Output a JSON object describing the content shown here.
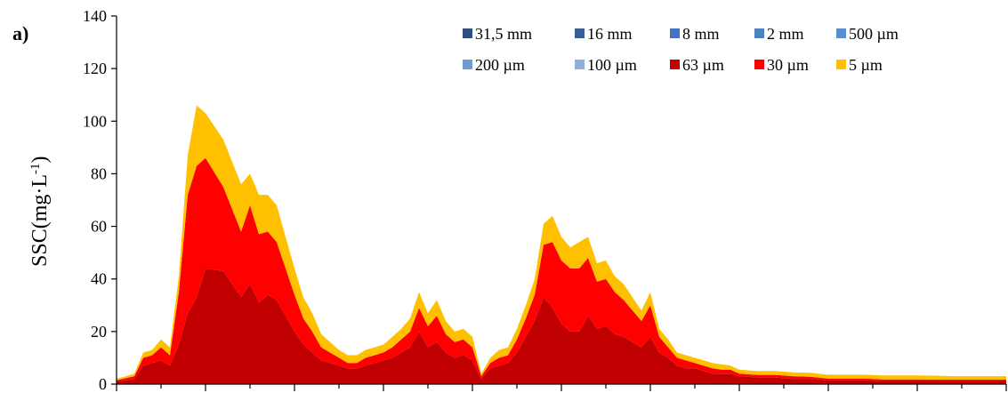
{
  "panel_label": "a)",
  "chart_data": {
    "type": "area",
    "stacked": true,
    "title": "",
    "xlabel": "",
    "ylabel": "SSC(mg·L",
    "ylabel_sup": "-1",
    "ylabel_close": ")",
    "ylim": [
      0,
      140
    ],
    "yticks": [
      0,
      20,
      40,
      60,
      80,
      100,
      120,
      140
    ],
    "xlim": [
      0,
      100
    ],
    "xticks_major": [
      0,
      10,
      20,
      30,
      40,
      50,
      60,
      70,
      80,
      90,
      100
    ],
    "xticks_minor": [
      5,
      15,
      25,
      35,
      45,
      55,
      65,
      75,
      85,
      95
    ],
    "legend_position": "top-right",
    "x": [
      0,
      2,
      3,
      4,
      5,
      6,
      7,
      8,
      9,
      10,
      12,
      14,
      15,
      16,
      17,
      18,
      19,
      20,
      21,
      22,
      23,
      24,
      25,
      26,
      27,
      28,
      29,
      30,
      31,
      32,
      33,
      34,
      35,
      36,
      37,
      38,
      39,
      40,
      41,
      42,
      43,
      44,
      45,
      46,
      47,
      48,
      49,
      50,
      51,
      52,
      53,
      54,
      55,
      56,
      57,
      58,
      59,
      60,
      61,
      62,
      63,
      64,
      65,
      66,
      67,
      68,
      69,
      70,
      72,
      74,
      76,
      78,
      80,
      82,
      84,
      86,
      88,
      90,
      92,
      94,
      96,
      98,
      100
    ],
    "series": [
      {
        "name": "31,5 mm",
        "color": "#2E4F7C",
        "values": [
          0,
          0,
          0,
          0,
          0,
          0,
          0,
          0,
          0,
          0,
          0,
          0,
          0,
          0,
          0,
          0,
          0,
          0,
          0,
          0,
          0,
          0,
          0,
          0,
          0,
          0,
          0,
          0,
          0,
          0,
          0,
          0,
          0,
          0,
          0,
          0,
          0,
          0,
          0,
          0,
          0,
          0,
          0,
          0,
          0,
          0,
          0,
          0,
          0,
          0,
          0,
          0,
          0,
          0,
          0,
          0,
          0,
          0,
          0,
          0,
          0,
          0,
          0,
          0,
          0,
          0,
          0,
          0,
          0,
          0,
          0,
          0,
          0,
          0,
          0,
          0,
          0,
          0,
          0,
          0,
          0,
          0,
          0
        ]
      },
      {
        "name": "16 mm",
        "color": "#375F94",
        "values": [
          0,
          0,
          0,
          0,
          0,
          0,
          0,
          0,
          0,
          0,
          0,
          0,
          0,
          0,
          0,
          0,
          0,
          0,
          0,
          0,
          0,
          0,
          0,
          0,
          0,
          0,
          0,
          0,
          0,
          0,
          0,
          0,
          0,
          0,
          0,
          0,
          0,
          0,
          0,
          0,
          0,
          0,
          0,
          0,
          0,
          0,
          0,
          0,
          0,
          0,
          0,
          0,
          0,
          0,
          0,
          0,
          0,
          0,
          0,
          0,
          0,
          0,
          0,
          0,
          0,
          0,
          0,
          0,
          0,
          0,
          0,
          0,
          0,
          0,
          0,
          0,
          0,
          0,
          0,
          0,
          0,
          0,
          0
        ]
      },
      {
        "name": "8 mm",
        "color": "#4472C4",
        "values": [
          0,
          0,
          0,
          0,
          0,
          0,
          0,
          0,
          0,
          0,
          0,
          0,
          0,
          0,
          0,
          0,
          0,
          0,
          0,
          0,
          0,
          0,
          0,
          0,
          0,
          0,
          0,
          0,
          0,
          0,
          0,
          0,
          0,
          0,
          0,
          0,
          0,
          0,
          0,
          0,
          0,
          0,
          0,
          0,
          0,
          0,
          0,
          0,
          0,
          0,
          0,
          0,
          0,
          0,
          0,
          0,
          0,
          0,
          0,
          0,
          0,
          0,
          0,
          0,
          0,
          0,
          0,
          0,
          0,
          0,
          0,
          0,
          0,
          0,
          0,
          0,
          0,
          0,
          0,
          0,
          0,
          0,
          0
        ]
      },
      {
        "name": "2 mm",
        "color": "#4F81BD",
        "values": [
          0,
          0,
          0,
          0,
          0,
          0,
          0,
          0,
          0,
          0,
          0,
          0,
          0,
          0,
          0,
          0,
          0,
          0,
          0,
          0,
          0,
          0,
          0,
          0,
          0,
          0,
          0,
          0,
          0,
          0,
          0,
          0,
          0,
          0,
          0,
          0,
          0,
          0,
          0,
          0,
          0,
          0,
          0,
          0,
          0,
          0,
          0,
          0,
          0,
          0,
          0,
          0,
          0,
          0,
          0,
          0,
          0,
          0,
          0,
          0,
          0,
          0,
          0,
          0,
          0,
          0,
          0,
          0,
          0,
          0,
          0,
          0,
          0,
          0,
          0,
          0,
          0,
          0,
          0,
          0,
          0,
          0,
          0
        ]
      },
      {
        "name": "500 µm",
        "color": "#5B8FCC",
        "values": [
          0,
          0,
          0,
          0,
          0,
          0,
          0,
          0,
          0,
          0,
          0,
          0,
          0,
          0,
          0,
          0,
          0,
          0,
          0,
          0,
          0,
          0,
          0,
          0,
          0,
          0,
          0,
          0,
          0,
          0,
          0,
          0,
          0,
          0,
          0,
          0,
          0,
          0,
          0,
          0,
          0,
          0,
          0,
          0,
          0,
          0,
          0,
          0,
          0,
          0,
          0,
          0,
          0,
          0,
          0,
          0,
          0,
          0,
          0,
          0,
          0,
          0,
          0,
          0,
          0,
          0,
          0,
          0,
          0,
          0,
          0,
          0,
          0,
          0,
          0,
          0,
          0,
          0,
          0,
          0,
          0,
          0,
          0
        ]
      },
      {
        "name": "200 µm",
        "color": "#6E9BD1",
        "values": [
          0,
          0,
          0,
          0,
          0,
          0,
          0,
          0,
          0,
          0,
          0,
          0,
          0,
          0,
          0,
          0,
          0,
          0,
          0,
          0,
          0,
          0,
          0,
          0,
          0,
          0,
          0,
          0,
          0,
          0,
          0,
          0,
          0,
          0,
          0,
          0,
          0,
          0,
          0,
          0,
          0,
          0,
          0,
          0,
          0,
          0,
          0,
          0,
          0,
          0,
          0,
          0,
          0,
          0,
          0,
          0,
          0,
          0,
          0,
          0,
          0,
          0,
          0,
          0,
          0,
          0,
          0,
          0,
          0,
          0,
          0,
          0,
          0,
          0,
          0,
          0,
          0,
          0,
          0,
          0,
          0,
          0,
          0
        ]
      },
      {
        "name": "100 µm",
        "color": "#8EAFD8",
        "values": [
          0,
          0,
          0,
          0,
          0,
          0,
          0,
          0,
          0,
          0,
          0,
          0,
          0,
          0,
          0,
          0,
          0,
          0,
          0,
          0,
          0,
          0,
          0,
          0,
          0,
          0,
          0,
          0,
          0,
          0,
          0,
          0,
          0,
          0,
          0,
          0,
          0,
          0,
          0,
          0,
          0,
          0,
          0,
          0,
          0,
          0,
          0,
          0,
          0,
          0,
          0,
          0,
          0,
          0,
          0,
          0,
          0,
          0,
          0,
          0,
          0,
          0,
          0,
          0,
          0,
          0,
          0,
          0,
          0,
          0,
          0,
          0,
          0,
          0,
          0,
          0,
          0,
          0,
          0,
          0,
          0,
          0,
          0
        ]
      },
      {
        "name": "63 µm",
        "color": "#C00000",
        "values": [
          1,
          2,
          7,
          8,
          9,
          7,
          15,
          27,
          33,
          44,
          43,
          33,
          38,
          31,
          34,
          32,
          26,
          20,
          15,
          12,
          9,
          8,
          7,
          6,
          6,
          7,
          8,
          9,
          10,
          12,
          14,
          20,
          14,
          16,
          12,
          10,
          11,
          9,
          2,
          6,
          7,
          8,
          12,
          18,
          24,
          33,
          29,
          23,
          20,
          20,
          26,
          21,
          22,
          19,
          18,
          16,
          14,
          18,
          12,
          10,
          7,
          6,
          6,
          5,
          4,
          4,
          4,
          3,
          2.5,
          2.5,
          2,
          2,
          1.5,
          1.5,
          1.5,
          1.2,
          1.2,
          1.2,
          1.2,
          1.2,
          1.2,
          1.2,
          1.2
        ]
      },
      {
        "name": "30 µm",
        "color": "#FF0000",
        "values": [
          0.5,
          1,
          3,
          3,
          5,
          4,
          20,
          45,
          50,
          42,
          32,
          25,
          30,
          26,
          24,
          22,
          18,
          14,
          10,
          8,
          5,
          4,
          3,
          2,
          2,
          3,
          3,
          3,
          4,
          5,
          6,
          9,
          8,
          10,
          7,
          6,
          6,
          5,
          1,
          2,
          3,
          3,
          5,
          7,
          10,
          20,
          25,
          24,
          24,
          24,
          22,
          18,
          18,
          16,
          14,
          12,
          10,
          12,
          6,
          4,
          3,
          3,
          2,
          2,
          2,
          1.5,
          1.5,
          1,
          1,
          1,
          1,
          0.8,
          0.6,
          0.6,
          0.6,
          0.6,
          0.6,
          0.6,
          0.5,
          0.5,
          0.5,
          0.5,
          0.5
        ]
      },
      {
        "name": "5 µm",
        "color": "#FFC000",
        "values": [
          0.5,
          1,
          2,
          2,
          3,
          3,
          6,
          15,
          23,
          17,
          18,
          18,
          12,
          15,
          14,
          14,
          12,
          10,
          8,
          7,
          5,
          4,
          3,
          3,
          3,
          3,
          3,
          3,
          4,
          4,
          5,
          6,
          5,
          6,
          5,
          4,
          4,
          4,
          1,
          2,
          3,
          3,
          4,
          5,
          6,
          8,
          10,
          9,
          8,
          10,
          8,
          7,
          7,
          6,
          6,
          5,
          4,
          5,
          3,
          3,
          2,
          2,
          2,
          2,
          2,
          2,
          1.5,
          1.5,
          1.5,
          1.5,
          1.5,
          1.5,
          1.5,
          1.5,
          1.5,
          1.5,
          1.5,
          1.5,
          1.5,
          1.3,
          1.3,
          1.3,
          1.3
        ]
      }
    ]
  }
}
